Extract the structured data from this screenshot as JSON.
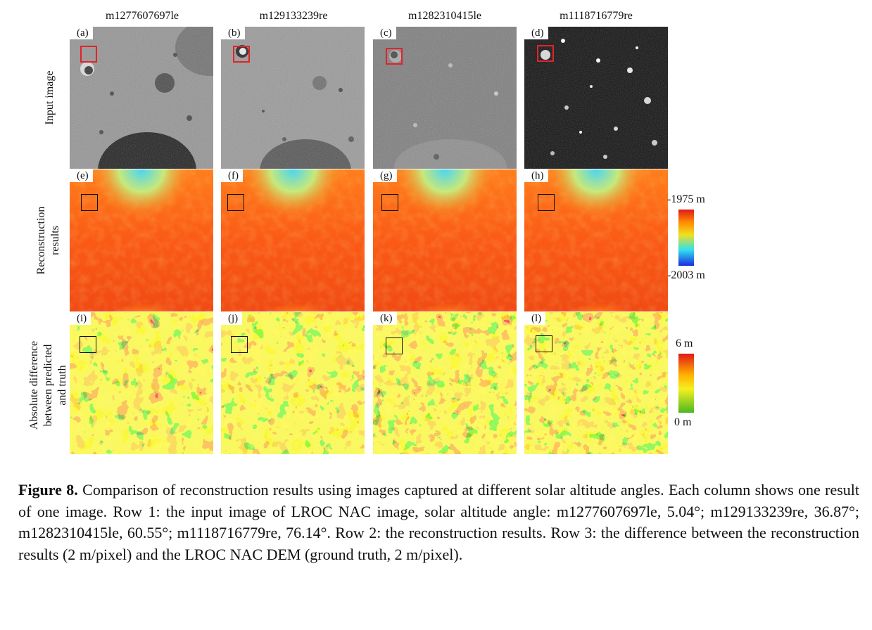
{
  "columns": [
    {
      "title": "m1277607697le"
    },
    {
      "title": "m129133239re"
    },
    {
      "title": "m1282310415le"
    },
    {
      "title": "m1118716779re"
    }
  ],
  "rows": [
    {
      "label_lines": [
        "Input image"
      ]
    },
    {
      "label_lines": [
        "Reconstruction",
        "results"
      ]
    },
    {
      "label_lines": [
        "Absolute difference",
        "between predicted",
        "and truth"
      ]
    }
  ],
  "panel_letters": [
    "(a)",
    "(b)",
    "(c)",
    "(d)",
    "(e)",
    "(f)",
    "(g)",
    "(h)",
    "(i)",
    "(j)",
    "(k)",
    "(l)"
  ],
  "colorbars": {
    "reconstruction": {
      "top_label": "-1975 m",
      "bottom_label": "-2003 m",
      "colors": [
        "#e01818",
        "#ff8a00",
        "#f0e020",
        "#30e0f0",
        "#1a2be0"
      ]
    },
    "difference": {
      "top_label": "6 m",
      "bottom_label": "0 m",
      "colors": [
        "#e01818",
        "#ffae00",
        "#f5f020",
        "#4cb820"
      ]
    }
  },
  "roi_colors": {
    "input": "#e0242a",
    "other": "#111111"
  },
  "caption": {
    "label": "Figure 8.",
    "text": "Comparison of reconstruction results using images captured at different solar altitude angles. Each column shows one result of one image. Row 1: the input image of LROC NAC image, solar altitude angle: m1277607697le, 5.04°; m129133239re, 36.87°; m1282310415le, 60.55°; m1118716779re, 76.14°. Row 2: the reconstruction results. Row 3: the difference between the reconstruction results (2 m/pixel) and the LROC NAC DEM (ground truth, 2 m/pixel)."
  }
}
